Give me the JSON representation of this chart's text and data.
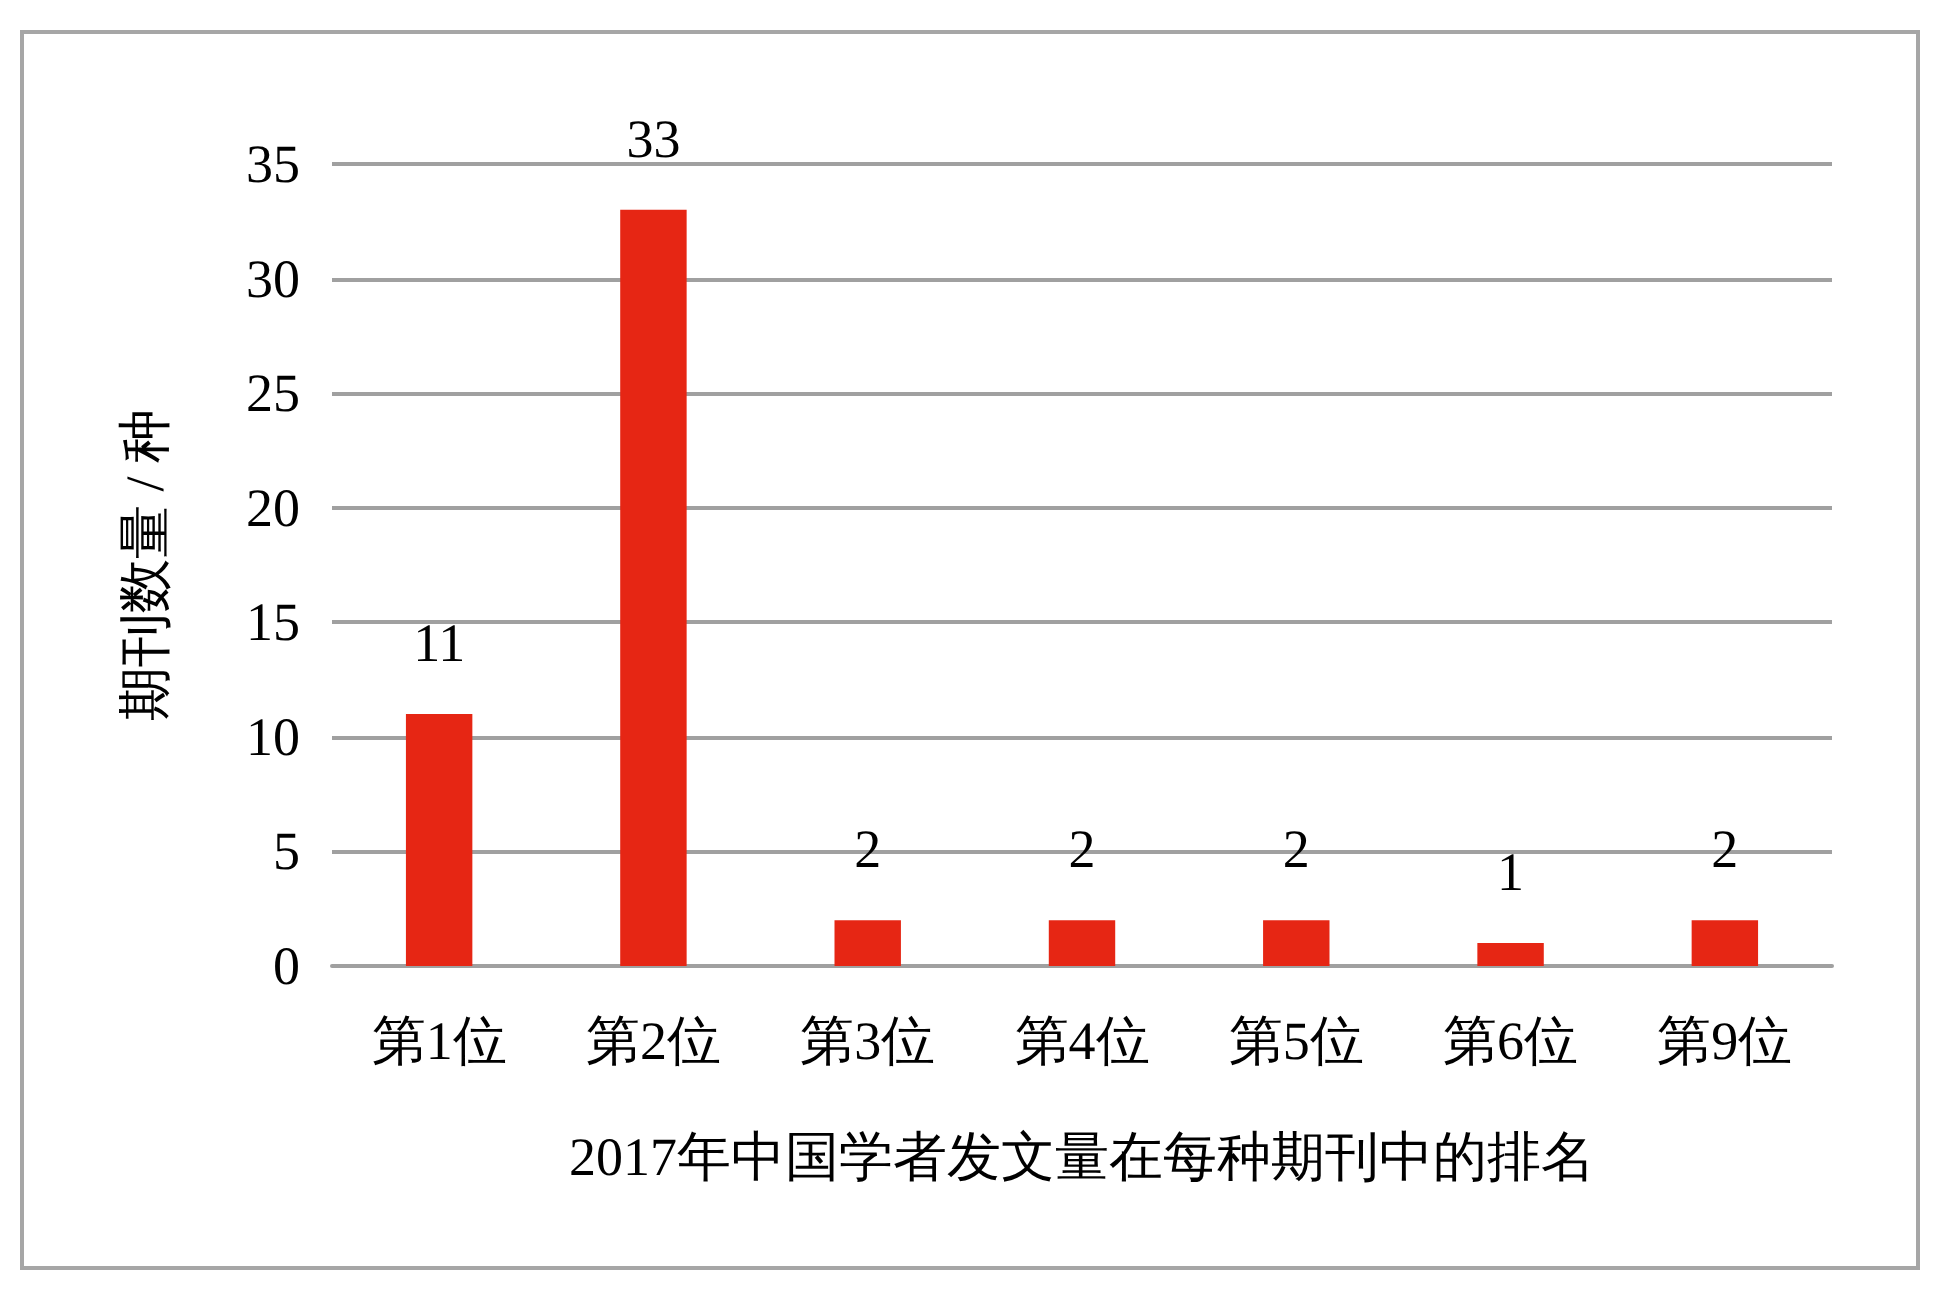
{
  "chart_data": {
    "type": "bar",
    "categories": [
      "第1位",
      "第2位",
      "第3位",
      "第4位",
      "第5位",
      "第6位",
      "第9位"
    ],
    "values": [
      11,
      33,
      2,
      2,
      2,
      1,
      2
    ],
    "color": "#e62614",
    "xlabel": "2017年中国学者发文量在每种期刊中的排名",
    "ylabel": "期刊数量 / 种",
    "ylim": [
      0,
      35
    ],
    "yticks": [
      0,
      5,
      10,
      15,
      20,
      25,
      30,
      35
    ],
    "grid": "y",
    "data_labels": true
  }
}
